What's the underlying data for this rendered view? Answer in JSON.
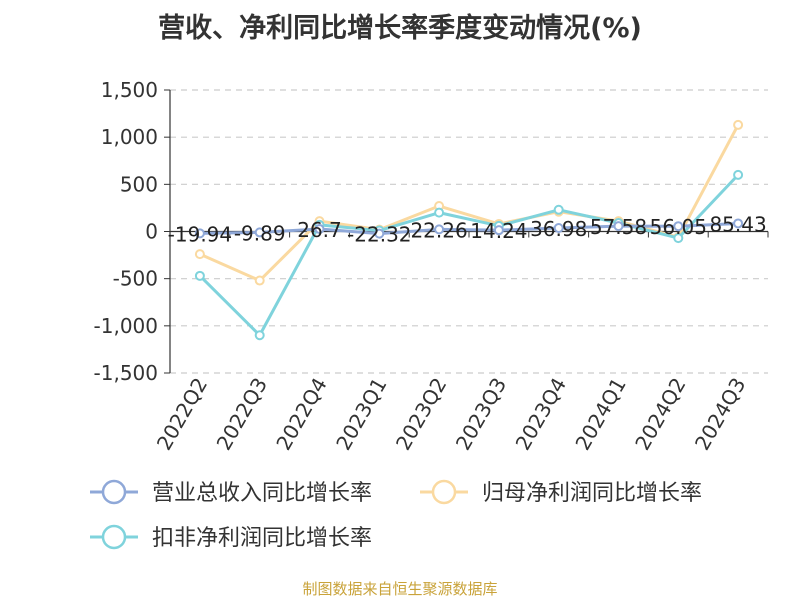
{
  "chart_data": {
    "type": "line",
    "title": "营收、净利同比增长率季度变动情况(%)",
    "categories": [
      "2022Q2",
      "2022Q3",
      "2022Q4",
      "2023Q1",
      "2023Q2",
      "2023Q3",
      "2023Q4",
      "2024Q1",
      "2024Q2",
      "2024Q3"
    ],
    "ylim": [
      -1500,
      1500
    ],
    "yticks": [
      1500,
      1000,
      500,
      0,
      -500,
      -1000,
      -1500
    ],
    "ytick_labels": [
      "1,500",
      "1,000",
      "500",
      "0",
      "-500",
      "-1,000",
      "-1,500"
    ],
    "grid": true,
    "legend_position": "bottom",
    "series": [
      {
        "name": "营业总收入同比增长率",
        "color": "#8fa8d8",
        "values": [
          -19.94,
          -9.89,
          26.7,
          -22.32,
          22.26,
          14.24,
          36.98,
          57.58,
          56.05,
          85.43
        ],
        "data_labels": [
          "-19.94",
          "-9.89",
          "26.7",
          "-22.32",
          "22.26",
          "14.24",
          "36.98",
          "57.58",
          "56.05",
          "85.43"
        ]
      },
      {
        "name": "归母净利润同比增长率",
        "color": "#fad9a0",
        "values": [
          -240,
          -520,
          110,
          20,
          270,
          80,
          210,
          110,
          -60,
          1130
        ]
      },
      {
        "name": "扣非净利润同比增长率",
        "color": "#7fd3dc",
        "values": [
          -470,
          -1100,
          70,
          10,
          200,
          60,
          230,
          90,
          -70,
          600
        ]
      }
    ]
  },
  "source_text": "制图数据来自恒生聚源数据库",
  "source_color": "#c9a33a"
}
